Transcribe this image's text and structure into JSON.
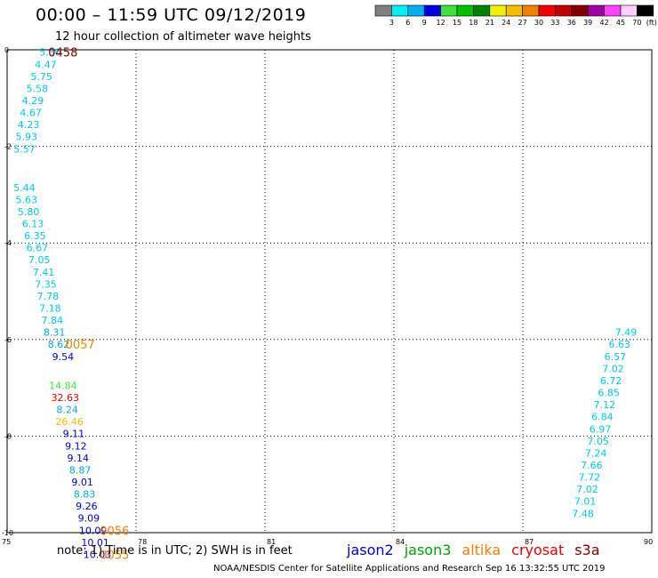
{
  "header": {
    "title": "00:00 – 11:59 UTC 09/12/2019",
    "subtitle": "12 hour collection of altimeter wave heights"
  },
  "color_legend": {
    "unit": "(ft)",
    "bins": [
      {
        "label": "3",
        "color": "#808080"
      },
      {
        "label": "6",
        "color": "#00f0f0"
      },
      {
        "label": "9",
        "color": "#00b0f0"
      },
      {
        "label": "12",
        "color": "#0000e0"
      },
      {
        "label": "15",
        "color": "#40e040"
      },
      {
        "label": "18",
        "color": "#00c000"
      },
      {
        "label": "21",
        "color": "#008000"
      },
      {
        "label": "24",
        "color": "#f0f000"
      },
      {
        "label": "27",
        "color": "#f0c000"
      },
      {
        "label": "30",
        "color": "#f08000"
      },
      {
        "label": "33",
        "color": "#f00000"
      },
      {
        "label": "36",
        "color": "#c00000"
      },
      {
        "label": "39",
        "color": "#800000"
      },
      {
        "label": "42",
        "color": "#a000a0"
      },
      {
        "label": "45",
        "color": "#ff40ff"
      },
      {
        "label": "70",
        "color": "#ffd0ff"
      }
    ],
    "extra_color": "#000000"
  },
  "chart_data": {
    "type": "scatter",
    "xlim": [
      75,
      90
    ],
    "ylim": [
      -10,
      0
    ],
    "x_ticks": [
      "75",
      "78",
      "81",
      "84",
      "87",
      "90"
    ],
    "y_ticks": [
      "0",
      "-2",
      "-4",
      "-6",
      "-8",
      "-10"
    ],
    "grid": true,
    "points": [
      {
        "lon": 76.0,
        "lat": -0.05,
        "label": "5.30",
        "color": "#00c8e0"
      },
      {
        "lon": 75.9,
        "lat": -0.3,
        "label": "4.47",
        "color": "#00c8e0"
      },
      {
        "lon": 75.8,
        "lat": -0.55,
        "label": "5.75",
        "color": "#00c8e0"
      },
      {
        "lon": 75.7,
        "lat": -0.8,
        "label": "5.58",
        "color": "#00c8e0"
      },
      {
        "lon": 75.6,
        "lat": -1.05,
        "label": "4.29",
        "color": "#00c8e0"
      },
      {
        "lon": 75.55,
        "lat": -1.3,
        "label": "4.67",
        "color": "#00c8e0"
      },
      {
        "lon": 75.5,
        "lat": -1.55,
        "label": "4.23",
        "color": "#00c8e0"
      },
      {
        "lon": 75.45,
        "lat": -1.8,
        "label": "5.93",
        "color": "#00c8e0"
      },
      {
        "lon": 75.4,
        "lat": -2.05,
        "label": "5.57",
        "color": "#00c8e0"
      },
      {
        "lon": 75.4,
        "lat": -2.85,
        "label": "5.44",
        "color": "#00c8e0"
      },
      {
        "lon": 75.45,
        "lat": -3.1,
        "label": "5.63",
        "color": "#00c8e0"
      },
      {
        "lon": 75.5,
        "lat": -3.35,
        "label": "5.80",
        "color": "#00c8e0"
      },
      {
        "lon": 75.6,
        "lat": -3.6,
        "label": "6.13",
        "color": "#00c8e0"
      },
      {
        "lon": 75.65,
        "lat": -3.85,
        "label": "6.35",
        "color": "#00c8e0"
      },
      {
        "lon": 75.7,
        "lat": -4.1,
        "label": "6.67",
        "color": "#00c8e0"
      },
      {
        "lon": 75.75,
        "lat": -4.35,
        "label": "7.05",
        "color": "#00c8e0"
      },
      {
        "lon": 75.85,
        "lat": -4.6,
        "label": "7.41",
        "color": "#00c8e0"
      },
      {
        "lon": 75.9,
        "lat": -4.85,
        "label": "7.35",
        "color": "#00c8e0"
      },
      {
        "lon": 75.95,
        "lat": -5.1,
        "label": "7.78",
        "color": "#00c8e0"
      },
      {
        "lon": 76.0,
        "lat": -5.35,
        "label": "7.18",
        "color": "#00c8e0"
      },
      {
        "lon": 76.05,
        "lat": -5.6,
        "label": "7.84",
        "color": "#00c8e0"
      },
      {
        "lon": 76.1,
        "lat": -5.85,
        "label": "8.31",
        "color": "#00a8e0"
      },
      {
        "lon": 76.2,
        "lat": -6.1,
        "label": "8.62",
        "color": "#00a8e0"
      },
      {
        "lon": 76.3,
        "lat": -6.35,
        "label": "9.54",
        "color": "#0000d0"
      },
      {
        "lon": 76.3,
        "lat": -6.95,
        "label": "14.84",
        "color": "#40e040"
      },
      {
        "lon": 76.35,
        "lat": -7.2,
        "label": "32.63",
        "color": "#e00000"
      },
      {
        "lon": 76.4,
        "lat": -7.45,
        "label": "8.24",
        "color": "#00a8e0"
      },
      {
        "lon": 76.45,
        "lat": -7.7,
        "label": "26.46",
        "color": "#f0c000"
      },
      {
        "lon": 76.55,
        "lat": -7.95,
        "label": "9.11",
        "color": "#0000d0"
      },
      {
        "lon": 76.6,
        "lat": -8.2,
        "label": "9.12",
        "color": "#0000d0"
      },
      {
        "lon": 76.65,
        "lat": -8.45,
        "label": "9.14",
        "color": "#0000d0"
      },
      {
        "lon": 76.7,
        "lat": -8.7,
        "label": "8.87",
        "color": "#00a8e0"
      },
      {
        "lon": 76.75,
        "lat": -8.95,
        "label": "9.01",
        "color": "#0000d0"
      },
      {
        "lon": 76.8,
        "lat": -9.2,
        "label": "8.83",
        "color": "#00a8e0"
      },
      {
        "lon": 76.85,
        "lat": -9.45,
        "label": "9.26",
        "color": "#0000d0"
      },
      {
        "lon": 76.9,
        "lat": -9.7,
        "label": "9.09",
        "color": "#0000d0"
      },
      {
        "lon": 77.0,
        "lat": -9.95,
        "label": "10.09",
        "color": "#0000d0"
      },
      {
        "lon": 77.05,
        "lat": -10.2,
        "label": "10.01",
        "color": "#0000d0"
      },
      {
        "lon": 77.1,
        "lat": -10.45,
        "label": "10.03",
        "color": "#0000d0"
      },
      {
        "lon": 89.4,
        "lat": -5.85,
        "label": "7.49",
        "color": "#00c8e0"
      },
      {
        "lon": 89.25,
        "lat": -6.1,
        "label": "6.63",
        "color": "#00c8e0"
      },
      {
        "lon": 89.15,
        "lat": -6.35,
        "label": "6.57",
        "color": "#00c8e0"
      },
      {
        "lon": 89.1,
        "lat": -6.6,
        "label": "7.02",
        "color": "#00c8e0"
      },
      {
        "lon": 89.05,
        "lat": -6.85,
        "label": "6.72",
        "color": "#00c8e0"
      },
      {
        "lon": 89.0,
        "lat": -7.1,
        "label": "6.85",
        "color": "#00c8e0"
      },
      {
        "lon": 88.9,
        "lat": -7.35,
        "label": "7.12",
        "color": "#00c8e0"
      },
      {
        "lon": 88.85,
        "lat": -7.6,
        "label": "6.84",
        "color": "#00c8e0"
      },
      {
        "lon": 88.8,
        "lat": -7.85,
        "label": "6.97",
        "color": "#00c8e0"
      },
      {
        "lon": 88.75,
        "lat": -8.1,
        "label": "7.05",
        "color": "#00c8e0"
      },
      {
        "lon": 88.7,
        "lat": -8.35,
        "label": "7.24",
        "color": "#00c8e0"
      },
      {
        "lon": 88.6,
        "lat": -8.6,
        "label": "7.66",
        "color": "#00c8e0"
      },
      {
        "lon": 88.55,
        "lat": -8.85,
        "label": "7.72",
        "color": "#00c8e0"
      },
      {
        "lon": 88.5,
        "lat": -9.1,
        "label": "7.02",
        "color": "#00c8e0"
      },
      {
        "lon": 88.45,
        "lat": -9.35,
        "label": "7.01",
        "color": "#00c8e0"
      },
      {
        "lon": 88.4,
        "lat": -9.6,
        "label": "7.48",
        "color": "#00c8e0"
      }
    ],
    "pass_times": [
      {
        "lon": 76.3,
        "lat": -0.05,
        "label": "0458",
        "color": "#800000"
      },
      {
        "lon": 76.7,
        "lat": -6.1,
        "label": "0057",
        "color": "#f08000"
      },
      {
        "lon": 77.5,
        "lat": -9.95,
        "label": "0056",
        "color": "#f08000"
      },
      {
        "lon": 77.5,
        "lat": -10.45,
        "label": "0055",
        "color": "#f08000"
      }
    ]
  },
  "footer": {
    "note": "note:  1) Time is in UTC;  2) SWH is in feet",
    "satellites": [
      {
        "name": "jason2",
        "color": "#0000d0"
      },
      {
        "name": "jason3",
        "color": "#00a000"
      },
      {
        "name": "altika",
        "color": "#f08000"
      },
      {
        "name": "cryosat",
        "color": "#e00000"
      },
      {
        "name": "s3a",
        "color": "#800000"
      }
    ],
    "credit": "NOAA/NESDIS Center for Satellite Applications and Research   Sep 16 13:32:55 UTC 2019"
  }
}
